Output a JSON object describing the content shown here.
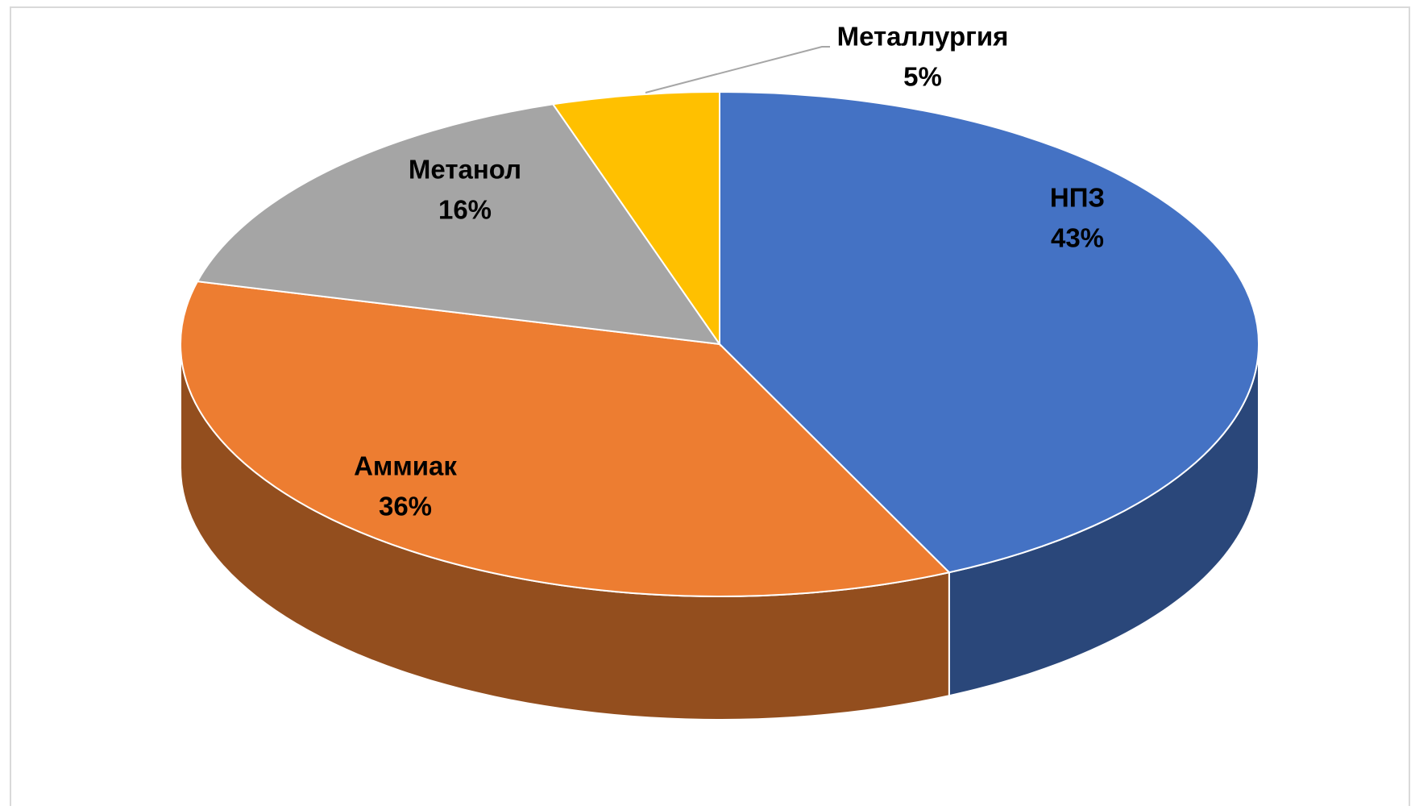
{
  "chart_data": {
    "type": "pie3d",
    "categories": [
      "НПЗ",
      "Аммиак",
      "Метанол",
      "Металлургия"
    ],
    "values": [
      43,
      36,
      16,
      5
    ],
    "value_labels": [
      "43%",
      "36%",
      "16%",
      "5%"
    ],
    "colors": [
      "#4472c4",
      "#ed7d31",
      "#a5a5a5",
      "#ffc000"
    ]
  }
}
